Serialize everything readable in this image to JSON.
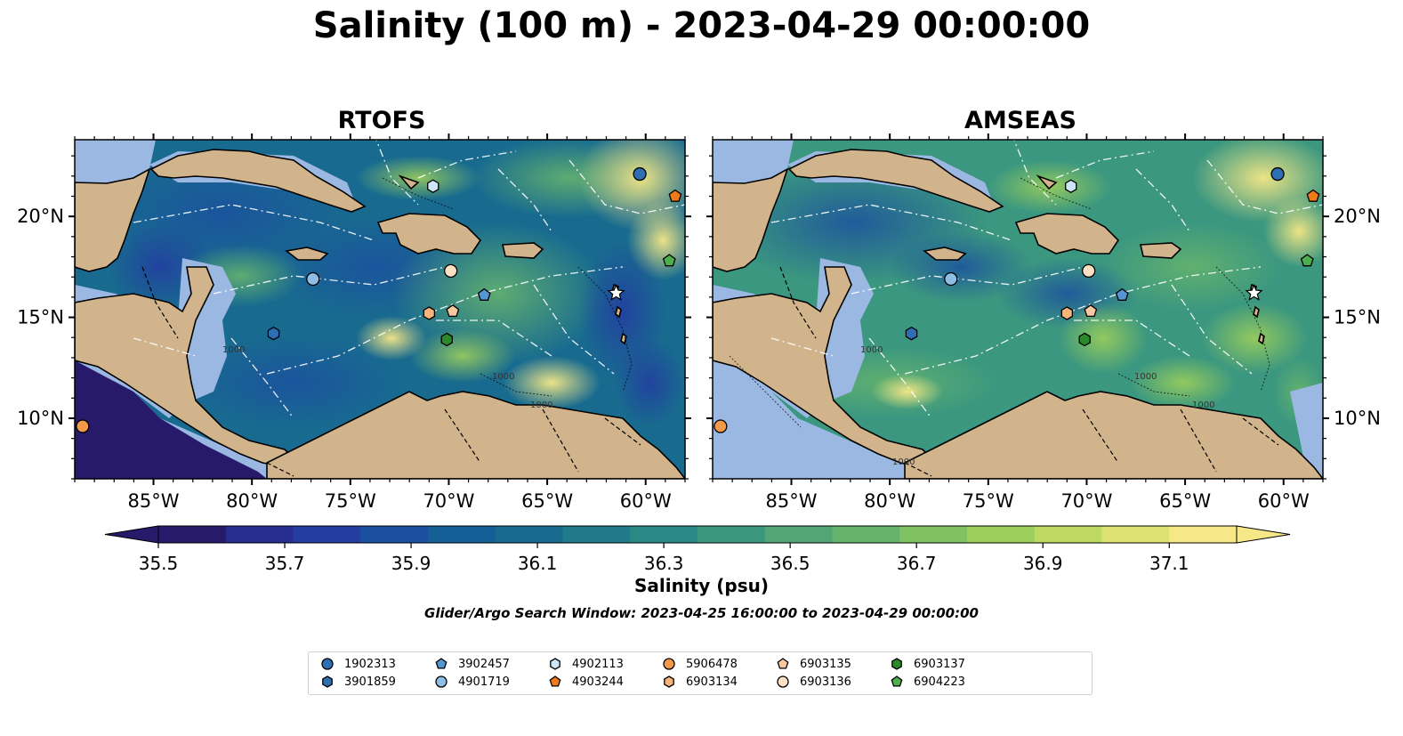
{
  "title": "Salinity (100 m) - 2023-04-29 00:00:00",
  "panels": [
    {
      "title": "RTOFS",
      "contour_labels": [
        "1000",
        "1000",
        "1000"
      ]
    },
    {
      "title": "AMSEAS",
      "contour_labels": [
        "1000",
        "1000",
        "1000",
        "1000"
      ]
    }
  ],
  "map": {
    "lon_range": [
      -89,
      -58
    ],
    "lat_range": [
      7,
      23.8
    ],
    "lon_ticks": [
      "85°W",
      "80°W",
      "75°W",
      "70°W",
      "65°W",
      "60°W"
    ],
    "lat_ticks": [
      "20°N",
      "15°N",
      "10°N"
    ],
    "land_color": "#d2b48c",
    "shelf_color": "#9bb8e3"
  },
  "colorbar": {
    "title": "Salinity (psu)",
    "ticks": [
      "35.5",
      "35.7",
      "35.9",
      "36.1",
      "36.3",
      "36.5",
      "36.7",
      "36.9",
      "37.1"
    ],
    "colors": [
      "#271a6b",
      "#262d90",
      "#233ea0",
      "#1b509f",
      "#145f96",
      "#186b8f",
      "#207a8a",
      "#2a8985",
      "#3b977f",
      "#52a577",
      "#66b36e",
      "#80c262",
      "#9ccf5b",
      "#bed95f",
      "#dee270",
      "#f6e886"
    ]
  },
  "subtitle": "Glider/Argo Search Window: 2023-04-25 16:00:00 to 2023-04-29 00:00:00",
  "platforms": [
    {
      "id": "1902313",
      "marker": "circle",
      "color": "#2e6fb3",
      "lon": -60.3,
      "lat": 22.1
    },
    {
      "id": "3901859",
      "marker": "hexagon",
      "color": "#2e6fb3",
      "lon": -78.9,
      "lat": 14.2
    },
    {
      "id": "3902457",
      "marker": "pentagon",
      "color": "#5595d3",
      "lon": -68.2,
      "lat": 16.1
    },
    {
      "id": "4901719",
      "marker": "circle",
      "color": "#8ebde6",
      "lon": -76.9,
      "lat": 16.9
    },
    {
      "id": "4902113",
      "marker": "hexagon",
      "color": "#cde6f7",
      "lon": -70.8,
      "lat": 21.5
    },
    {
      "id": "4903244",
      "marker": "pentagon",
      "color": "#f07a1a",
      "lon": -58.5,
      "lat": 21.0
    },
    {
      "id": "5906478",
      "marker": "circle",
      "color": "#f39a4a",
      "lon": -88.6,
      "lat": 9.6
    },
    {
      "id": "6903134",
      "marker": "hexagon",
      "color": "#f6b37a",
      "lon": -71.0,
      "lat": 15.2
    },
    {
      "id": "6903135",
      "marker": "pentagon",
      "color": "#f8c9a0",
      "lon": -69.8,
      "lat": 15.3
    },
    {
      "id": "6903136",
      "marker": "circle",
      "color": "#fde0c3",
      "lon": -69.9,
      "lat": 17.3
    },
    {
      "id": "6903137",
      "marker": "hexagon",
      "color": "#2a8a2a",
      "lon": -70.1,
      "lat": 13.9
    },
    {
      "id": "6904223",
      "marker": "pentagon",
      "color": "#4cae4c",
      "lon": -58.8,
      "lat": 17.8
    }
  ]
}
